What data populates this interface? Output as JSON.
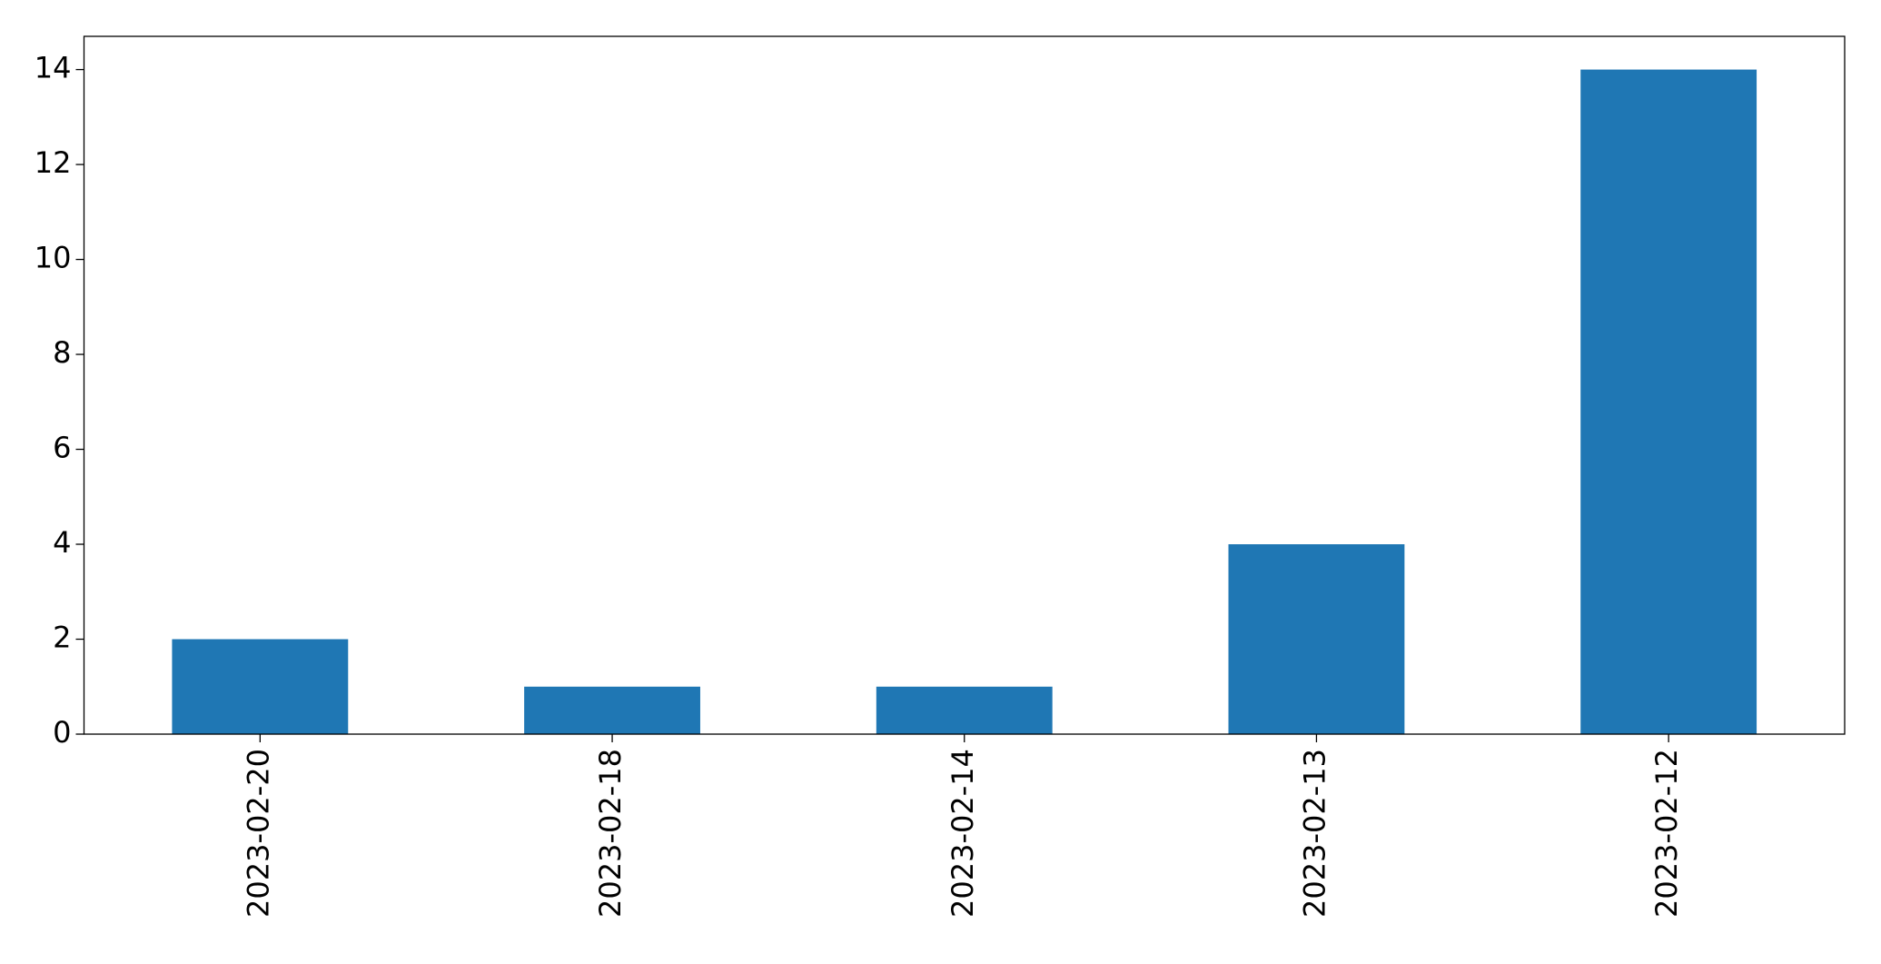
{
  "chart_data": {
    "type": "bar",
    "categories": [
      "2023-02-20",
      "2023-02-18",
      "2023-02-14",
      "2023-02-13",
      "2023-02-12"
    ],
    "values": [
      2,
      1,
      1,
      4,
      14
    ],
    "color": "#1f77b4",
    "ylim": [
      0,
      14.7
    ],
    "yticks": [
      0,
      2,
      4,
      6,
      8,
      10,
      12,
      14
    ],
    "grid": false
  }
}
